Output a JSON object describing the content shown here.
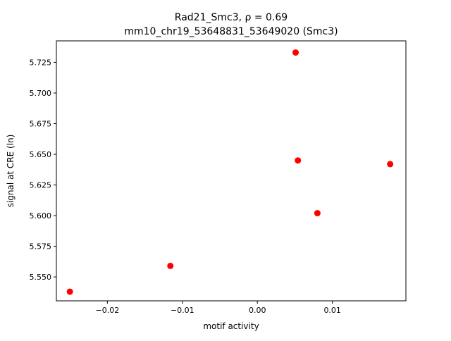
{
  "chart_data": {
    "type": "scatter",
    "title_line1": "Rad21_Smc3, ρ = 0.69",
    "title_line2": "mm10_chr19_53648831_53649020 (Smc3)",
    "xlabel": "motif activity",
    "ylabel": "signal at CRE (ln)",
    "xlim": [
      -0.0268,
      0.0198
    ],
    "ylim": [
      5.5305,
      5.7425
    ],
    "x_ticks": [
      {
        "value": -0.02,
        "label": "−0.02"
      },
      {
        "value": -0.01,
        "label": "−0.01"
      },
      {
        "value": 0.0,
        "label": "0.00"
      },
      {
        "value": 0.01,
        "label": "0.01"
      }
    ],
    "y_ticks": [
      {
        "value": 5.55,
        "label": "5.550"
      },
      {
        "value": 5.575,
        "label": "5.575"
      },
      {
        "value": 5.6,
        "label": "5.600"
      },
      {
        "value": 5.625,
        "label": "5.625"
      },
      {
        "value": 5.65,
        "label": "5.650"
      },
      {
        "value": 5.675,
        "label": "5.675"
      },
      {
        "value": 5.7,
        "label": "5.700"
      },
      {
        "value": 5.725,
        "label": "5.725"
      }
    ],
    "grid": false,
    "marker_color": "#ff0000",
    "points": [
      {
        "x": -0.025,
        "y": 5.538
      },
      {
        "x": -0.0116,
        "y": 5.559
      },
      {
        "x": 0.0051,
        "y": 5.733
      },
      {
        "x": 0.0054,
        "y": 5.645
      },
      {
        "x": 0.008,
        "y": 5.602
      },
      {
        "x": 0.0177,
        "y": 5.642
      }
    ]
  }
}
